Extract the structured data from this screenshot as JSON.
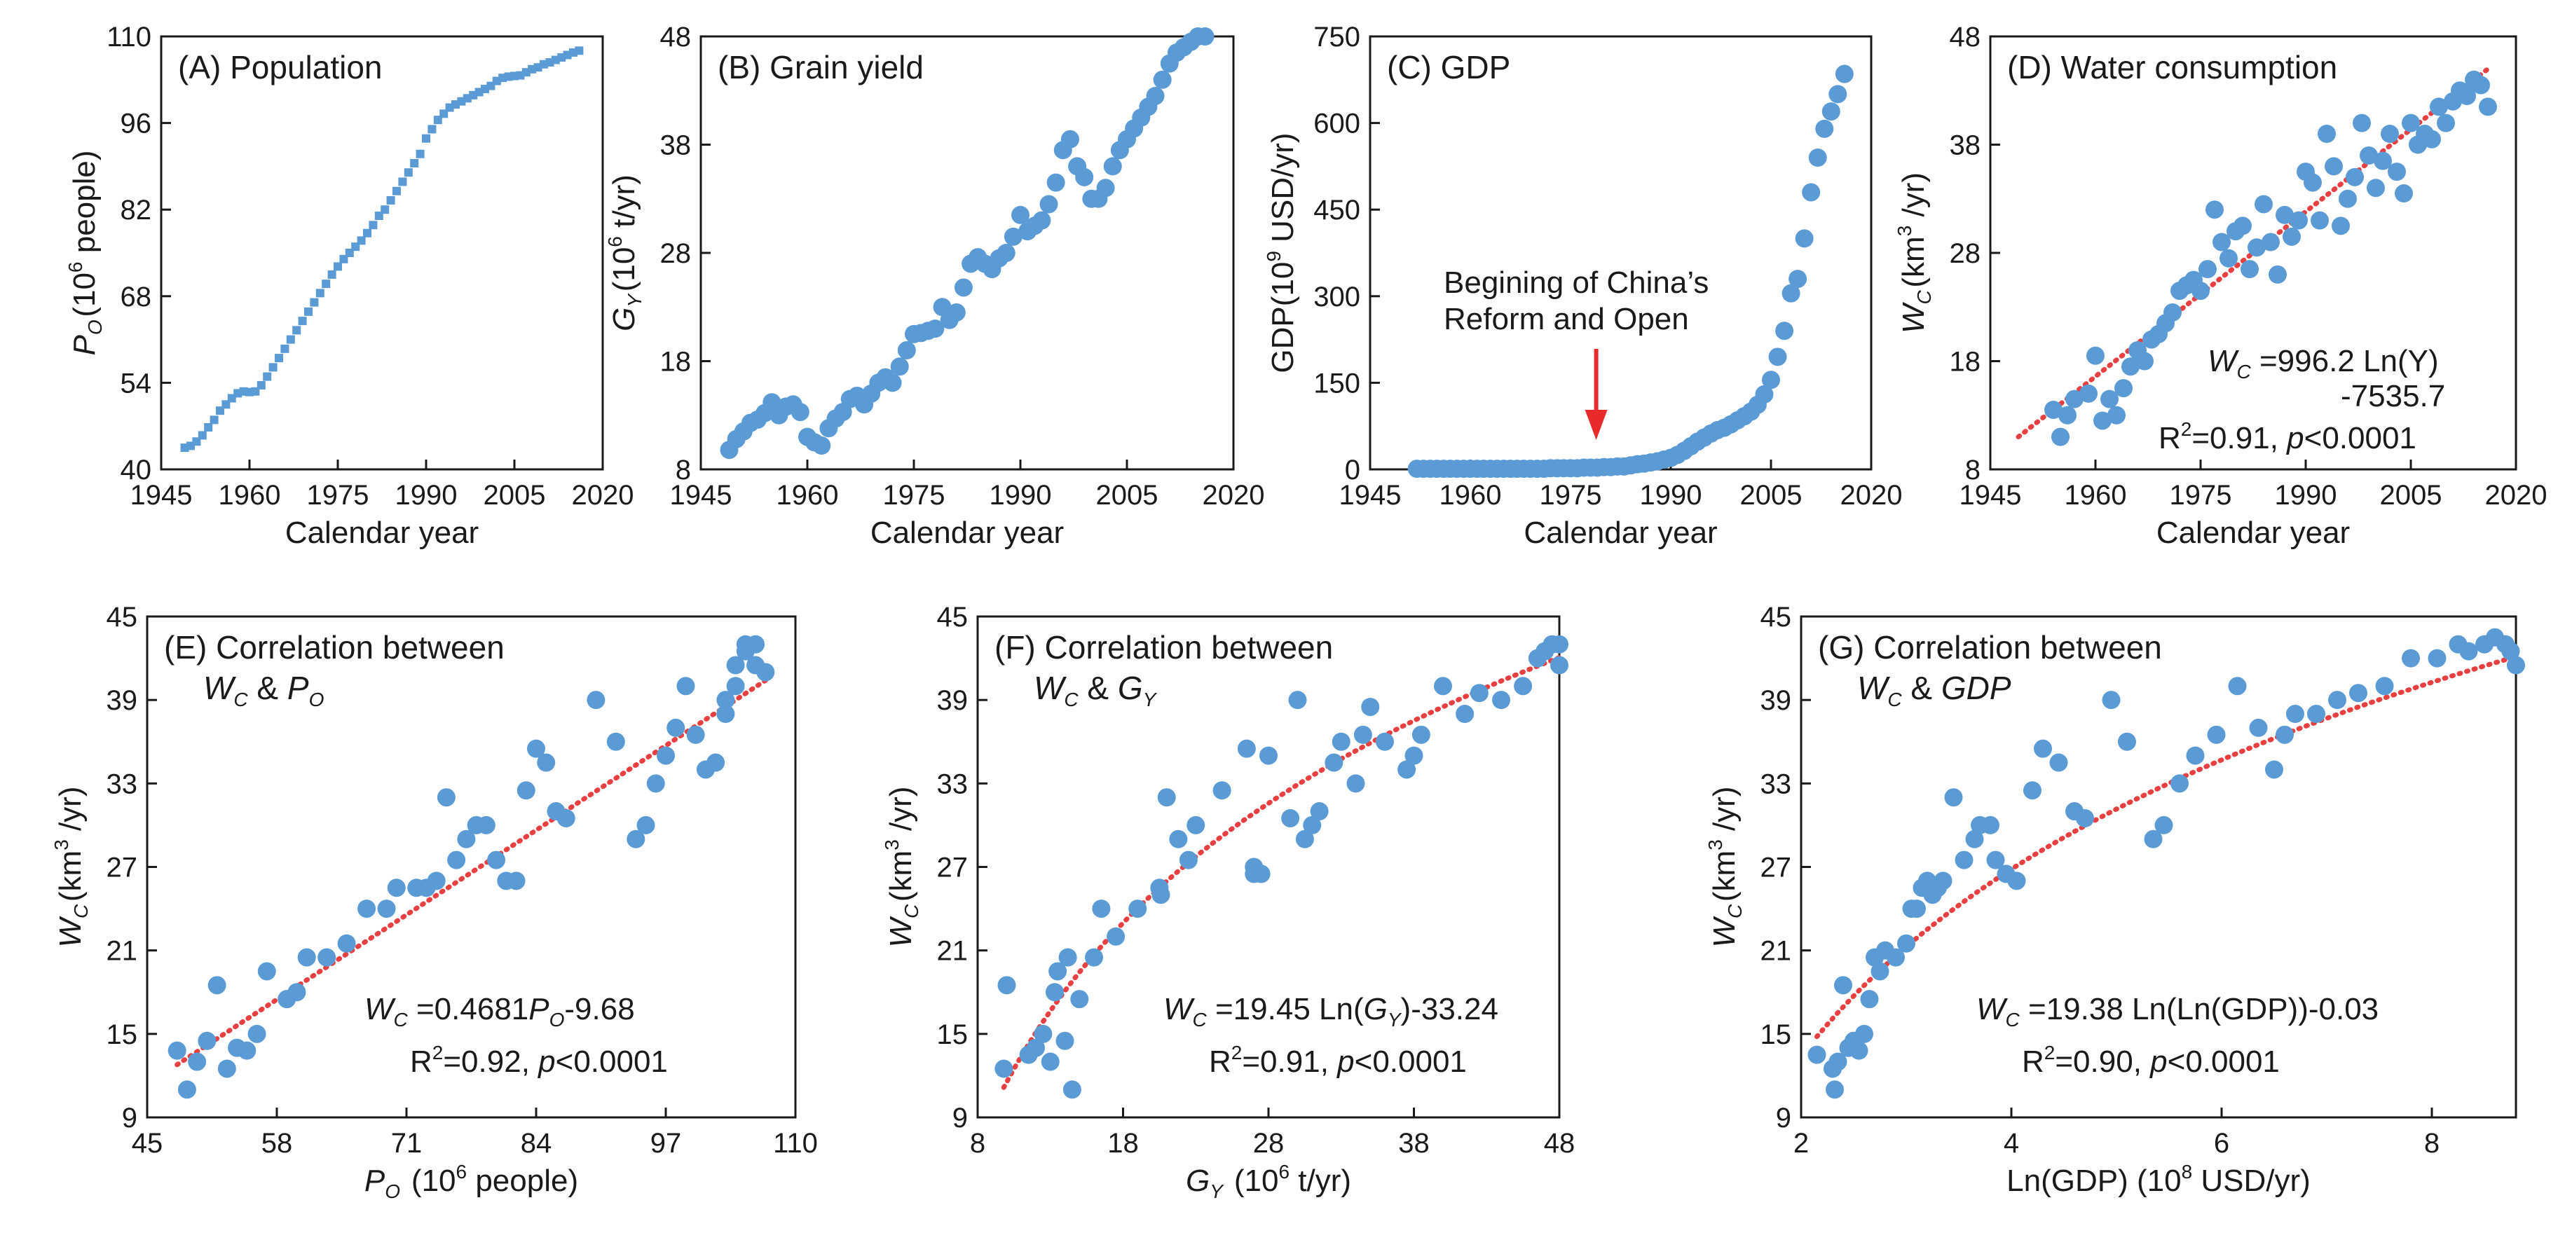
{
  "colors": {
    "point": "#5b9bd5",
    "fit": "#e84040",
    "arrow": "#e82a2a",
    "axis": "#1a1a1a"
  },
  "chart_data": [
    {
      "id": "A",
      "type": "scatter",
      "marker": "square",
      "title": "(A) Population",
      "xlabel": "Calendar year",
      "ylabel": {
        "main": "P",
        "sub": "O",
        "rest1": "(10",
        "sup": "6",
        "rest2": " people)"
      },
      "xlim": [
        1945,
        2020
      ],
      "ylim": [
        40,
        110
      ],
      "xticks": [
        "1945",
        "1960",
        "1975",
        "1990",
        "2005",
        "2020"
      ],
      "yticks": [
        "40",
        "54",
        "68",
        "82",
        "96",
        "110"
      ],
      "x": [
        1949,
        1950,
        1951,
        1952,
        1953,
        1954,
        1955,
        1956,
        1957,
        1958,
        1959,
        1960,
        1961,
        1962,
        1963,
        1964,
        1965,
        1966,
        1967,
        1968,
        1969,
        1970,
        1971,
        1972,
        1973,
        1974,
        1975,
        1976,
        1977,
        1978,
        1979,
        1980,
        1981,
        1982,
        1983,
        1984,
        1985,
        1986,
        1987,
        1988,
        1989,
        1990,
        1991,
        1992,
        1993,
        1994,
        1995,
        1996,
        1997,
        1998,
        1999,
        2000,
        2001,
        2002,
        2003,
        2004,
        2005,
        2006,
        2007,
        2008,
        2009,
        2010,
        2011,
        2012,
        2013,
        2014,
        2015,
        2016
      ],
      "y": [
        43.5,
        43.8,
        44.5,
        45.5,
        46.8,
        48.0,
        49.5,
        50.5,
        51.5,
        52.3,
        52.6,
        52.5,
        52.6,
        53.6,
        55.0,
        56.5,
        58.0,
        59.5,
        61.0,
        62.5,
        64.0,
        65.5,
        67.0,
        68.5,
        70.0,
        71.5,
        72.8,
        74.0,
        75.0,
        76.0,
        77.0,
        78.2,
        79.5,
        81.0,
        82.0,
        83.5,
        85.0,
        86.5,
        88.0,
        89.5,
        91.0,
        93.5,
        95.0,
        96.5,
        97.5,
        98.5,
        99.0,
        99.5,
        100.0,
        100.5,
        101.0,
        101.5,
        102.0,
        102.8,
        103.3,
        103.5,
        103.6,
        103.7,
        104.2,
        104.7,
        105.0,
        105.5,
        105.8,
        106.2,
        106.6,
        107.0,
        107.4,
        107.7
      ]
    },
    {
      "id": "B",
      "type": "scatter",
      "title": "(B) Grain yield",
      "xlabel": "Calendar year",
      "ylabel": {
        "main": "G",
        "sub": "Y",
        "rest1": "(10",
        "sup": "6",
        "rest2": " t/yr)"
      },
      "xlim": [
        1945,
        2020
      ],
      "ylim": [
        8,
        48
      ],
      "xticks": [
        "1945",
        "1960",
        "1975",
        "1990",
        "2005",
        "2020"
      ],
      "yticks": [
        "8",
        "18",
        "28",
        "38",
        "48"
      ],
      "x": [
        1949,
        1950,
        1951,
        1952,
        1953,
        1954,
        1955,
        1956,
        1957,
        1958,
        1959,
        1960,
        1961,
        1962,
        1963,
        1964,
        1965,
        1966,
        1967,
        1968,
        1969,
        1970,
        1971,
        1972,
        1973,
        1974,
        1975,
        1976,
        1977,
        1978,
        1979,
        1980,
        1981,
        1982,
        1983,
        1984,
        1985,
        1986,
        1987,
        1988,
        1989,
        1990,
        1991,
        1992,
        1993,
        1994,
        1995,
        1996,
        1997,
        1998,
        1999,
        2000,
        2001,
        2002,
        2003,
        2004,
        2005,
        2006,
        2007,
        2008,
        2009,
        2010,
        2011,
        2012,
        2013,
        2014,
        2015,
        2016
      ],
      "y": [
        9.8,
        10.8,
        11.5,
        12.3,
        12.6,
        13.2,
        14.2,
        13.0,
        13.8,
        14.0,
        13.3,
        11.0,
        10.5,
        10.2,
        11.8,
        12.7,
        13.3,
        14.5,
        14.8,
        14.0,
        15.0,
        16.0,
        16.5,
        16.0,
        17.5,
        19.0,
        20.5,
        20.6,
        20.8,
        21.0,
        23.0,
        21.8,
        22.5,
        24.8,
        27.0,
        27.6,
        27.0,
        26.5,
        27.5,
        28.0,
        29.5,
        31.5,
        30.0,
        30.5,
        31.0,
        32.5,
        34.5,
        37.5,
        38.5,
        36.0,
        35.0,
        33.0,
        33.0,
        34.0,
        36.0,
        37.5,
        38.5,
        39.5,
        40.5,
        41.5,
        42.5,
        44.0,
        45.5,
        46.5,
        47.0,
        47.5,
        48.0,
        48.0
      ]
    },
    {
      "id": "C",
      "type": "scatter",
      "title": "(C) GDP",
      "xlabel": "Calendar year",
      "ylabel": {
        "main": "GDP",
        "sub": "",
        "rest1": "(10",
        "sup": "9",
        "rest2": " USD/yr)"
      },
      "xlim": [
        1945,
        2020
      ],
      "ylim": [
        0,
        750
      ],
      "xticks": [
        "1945",
        "1960",
        "1975",
        "1990",
        "2005",
        "2020"
      ],
      "yticks": [
        "0",
        "150",
        "300",
        "450",
        "600",
        "750"
      ],
      "annotation": [
        "Begining of China’s",
        "Reform and Open"
      ],
      "arrow_year": 1978,
      "x": [
        1952,
        1953,
        1954,
        1955,
        1956,
        1957,
        1958,
        1959,
        1960,
        1961,
        1962,
        1963,
        1964,
        1965,
        1966,
        1967,
        1968,
        1969,
        1970,
        1971,
        1972,
        1973,
        1974,
        1975,
        1976,
        1977,
        1978,
        1979,
        1980,
        1981,
        1982,
        1983,
        1984,
        1985,
        1986,
        1987,
        1988,
        1989,
        1990,
        1991,
        1992,
        1993,
        1994,
        1995,
        1996,
        1997,
        1998,
        1999,
        2000,
        2001,
        2002,
        2003,
        2004,
        2005,
        2006,
        2007,
        2008,
        2009,
        2010,
        2011,
        2012,
        2013,
        2014,
        2015,
        2016
      ],
      "y": [
        1,
        1,
        1,
        1,
        1,
        1,
        1,
        1,
        1,
        1,
        1,
        1,
        1,
        1,
        1,
        1,
        1,
        1,
        1,
        1,
        2,
        2,
        2,
        2,
        2,
        3,
        3,
        3,
        4,
        4,
        5,
        5,
        7,
        9,
        10,
        12,
        14,
        17,
        20,
        25,
        32,
        40,
        48,
        55,
        62,
        68,
        72,
        78,
        85,
        92,
        100,
        112,
        130,
        155,
        195,
        240,
        305,
        330,
        400,
        480,
        540,
        590,
        620,
        650,
        685
      ]
    },
    {
      "id": "D",
      "type": "scatter",
      "title": "(D) Water consumption",
      "xlabel": "Calendar year",
      "ylabel": {
        "main": "W",
        "sub": "C",
        "rest1": "(km",
        "sup": "3",
        "rest2": " /yr)"
      },
      "xlim": [
        1945,
        2020
      ],
      "ylim": [
        8,
        48
      ],
      "xticks": [
        "1945",
        "1960",
        "1975",
        "1990",
        "2005",
        "2020"
      ],
      "yticks": [
        "8",
        "18",
        "28",
        "38",
        "48"
      ],
      "fit": {
        "type": "linear",
        "x0": 1949,
        "y0": 11.0,
        "x1": 2016,
        "y1": 45.0
      },
      "equation": {
        "lhs": "W",
        "sub": "C",
        "line1": " =996.2 Ln(Y)",
        "line2": "-7535.7",
        "r2a": "R",
        "r2sup": "2",
        "r2b": "=0.91, ",
        "p": "p",
        "ptail": "<0.0001"
      },
      "x": [
        1954,
        1955,
        1956,
        1957,
        1959,
        1960,
        1961,
        1962,
        1963,
        1964,
        1965,
        1966,
        1967,
        1968,
        1969,
        1970,
        1971,
        1972,
        1973,
        1974,
        1975,
        1976,
        1977,
        1978,
        1979,
        1980,
        1981,
        1982,
        1983,
        1984,
        1985,
        1986,
        1987,
        1988,
        1989,
        1990,
        1991,
        1992,
        1993,
        1994,
        1995,
        1996,
        1997,
        1998,
        1999,
        2000,
        2001,
        2002,
        2003,
        2004,
        2005,
        2006,
        2007,
        2008,
        2009,
        2010,
        2011,
        2012,
        2013,
        2014,
        2015,
        2016
      ],
      "y": [
        13.5,
        11.0,
        13.0,
        14.5,
        15.0,
        18.5,
        12.5,
        14.5,
        13.0,
        15.5,
        17.5,
        19.0,
        18.0,
        20.0,
        20.5,
        21.5,
        22.5,
        24.5,
        25.0,
        25.5,
        24.5,
        26.5,
        32.0,
        29.0,
        27.5,
        30.0,
        30.5,
        26.5,
        28.5,
        32.5,
        29.0,
        26.0,
        31.5,
        29.5,
        31.0,
        35.5,
        34.5,
        31.0,
        39.0,
        36.0,
        30.5,
        33.0,
        35.0,
        40.0,
        37.0,
        34.0,
        36.5,
        39.0,
        35.5,
        33.5,
        40.0,
        38.0,
        39.0,
        38.5,
        41.5,
        40.0,
        42.0,
        43.0,
        42.5,
        44.0,
        43.5,
        41.5
      ]
    },
    {
      "id": "E",
      "type": "scatter",
      "title": "(E) Correlation between",
      "subtitle": {
        "a": "W",
        "asub": "C",
        "mid": " & ",
        "b": "P",
        "bsub": "O"
      },
      "xlabel": {
        "main": "P",
        "sub": "O",
        "rest1": " (10",
        "sup": "6",
        "rest2": " people)"
      },
      "ylabel": {
        "main": "W",
        "sub": "C",
        "rest1": "(km",
        "sup": "3",
        "rest2": " /yr)"
      },
      "xlim": [
        45,
        110
      ],
      "ylim": [
        9,
        45
      ],
      "xticks": [
        "45",
        "58",
        "71",
        "84",
        "97",
        "110"
      ],
      "yticks": [
        "9",
        "15",
        "21",
        "27",
        "33",
        "39",
        "45"
      ],
      "fit": {
        "type": "linear",
        "slope": 0.4681,
        "intercept": -9.68,
        "x0": 48,
        "x1": 107
      },
      "equation": {
        "lhs": "W",
        "sub": "C",
        "a": " =0.4681",
        "var": "P",
        "varsub": "O",
        "b": "-9.68",
        "r2a": "R",
        "r2sup": "2",
        "r2b": "=0.92, ",
        "p": "p",
        "ptail": "<0.0001"
      },
      "x": [
        48,
        49,
        50,
        51,
        52,
        53,
        54,
        55,
        56,
        57,
        59,
        60,
        61,
        63,
        65,
        67,
        69,
        70,
        72,
        73,
        74,
        75,
        76,
        77,
        78,
        79,
        80,
        81,
        82,
        83,
        84,
        85,
        86,
        87,
        90,
        92,
        94,
        95,
        96,
        97,
        98,
        99,
        100,
        101,
        102,
        103,
        103,
        104,
        104,
        105,
        105,
        106,
        106,
        107
      ],
      "y": [
        13.8,
        11.0,
        13.0,
        14.5,
        18.5,
        12.5,
        14.0,
        13.8,
        15.0,
        19.5,
        17.5,
        18.0,
        20.5,
        20.5,
        21.5,
        24.0,
        24.0,
        25.5,
        25.5,
        25.5,
        26.0,
        32.0,
        27.5,
        29.0,
        30.0,
        30.0,
        27.5,
        26.0,
        26.0,
        32.5,
        35.5,
        34.5,
        31.0,
        30.5,
        39.0,
        36.0,
        29.0,
        30.0,
        33.0,
        35.0,
        37.0,
        40.0,
        36.5,
        34.0,
        34.5,
        38.0,
        39.0,
        40.0,
        41.5,
        42.5,
        43.0,
        43.0,
        41.5,
        41.0
      ]
    },
    {
      "id": "F",
      "type": "scatter",
      "title": "(F) Correlation between",
      "subtitle": {
        "a": "W",
        "asub": "C",
        "mid": " & ",
        "b": "G",
        "bsub": "Y"
      },
      "xlabel": {
        "main": "G",
        "sub": "Y",
        "rest1": " (10",
        "sup": "6",
        "rest2": " t/yr)"
      },
      "ylabel": {
        "main": "W",
        "sub": "C",
        "rest1": "(km",
        "sup": "3",
        "rest2": " /yr)"
      },
      "xlim": [
        8,
        48
      ],
      "ylim": [
        9,
        45
      ],
      "xticks": [
        "8",
        "18",
        "28",
        "38",
        "48"
      ],
      "yticks": [
        "9",
        "15",
        "21",
        "27",
        "33",
        "39",
        "45"
      ],
      "fit": {
        "type": "log",
        "a": 19.45,
        "b": -33.24,
        "x0": 9.8,
        "x1": 48
      },
      "equation": {
        "lhs": "W",
        "sub": "C",
        "a": " =19.45 Ln(",
        "var": "G",
        "varsub": "Y",
        "b": ")-33.24",
        "r2a": "R",
        "r2sup": "2",
        "r2b": "=0.91, ",
        "p": "p",
        "ptail": "<0.0001"
      },
      "x": [
        9.8,
        10.0,
        11.5,
        12.0,
        12.5,
        13.0,
        13.3,
        13.5,
        14.0,
        14.2,
        14.5,
        15.0,
        16.0,
        16.5,
        17.5,
        19.0,
        20.5,
        20.6,
        21.0,
        21.8,
        22.5,
        23.0,
        24.8,
        26.5,
        27.0,
        27.0,
        27.5,
        28.0,
        29.5,
        30.0,
        30.5,
        31.0,
        31.5,
        32.5,
        33.0,
        34.0,
        34.5,
        35.0,
        36.0,
        37.5,
        38.0,
        38.5,
        40.0,
        41.5,
        42.5,
        44.0,
        45.5,
        46.5,
        47.0,
        47.5,
        48.0,
        48.0
      ],
      "y": [
        12.5,
        18.5,
        13.5,
        14.0,
        15.0,
        13.0,
        18.0,
        19.5,
        14.5,
        20.5,
        11.0,
        17.5,
        20.5,
        24.0,
        22.0,
        24.0,
        25.5,
        25.0,
        32.0,
        29.0,
        27.5,
        30.0,
        32.5,
        35.5,
        26.5,
        27.0,
        26.5,
        35.0,
        30.5,
        39.0,
        29.0,
        30.0,
        31.0,
        34.5,
        36.0,
        33.0,
        36.5,
        38.5,
        36.0,
        34.0,
        35.0,
        36.5,
        40.0,
        38.0,
        39.5,
        39.0,
        40.0,
        42.0,
        42.5,
        43.0,
        43.0,
        41.5
      ]
    },
    {
      "id": "G",
      "type": "scatter",
      "title": "(G) Correlation between",
      "subtitle": {
        "a": "W",
        "asub": "C",
        "mid": " & ",
        "b": "GDP",
        "bsub": ""
      },
      "xlabel": {
        "main": "Ln(GDP) (10",
        "sub": "",
        "rest1": "",
        "sup": "8",
        "rest2": " USD/yr)"
      },
      "ylabel": {
        "main": "W",
        "sub": "C",
        "rest1": "(km",
        "sup": "3",
        "rest2": " /yr)"
      },
      "xlim": [
        2,
        8.8
      ],
      "ylim": [
        9,
        45
      ],
      "xticks": [
        "2",
        "4",
        "6",
        "8"
      ],
      "xtick_values": [
        2,
        4,
        6,
        8
      ],
      "yticks": [
        "9",
        "15",
        "21",
        "27",
        "33",
        "39",
        "45"
      ],
      "fit": {
        "type": "loglog",
        "a": 19.38,
        "b": -0.03,
        "x0": 2.15,
        "x1": 8.8
      },
      "equation": {
        "lhs": "W",
        "sub": "C",
        "a": " =19.38 Ln(Ln(GDP))-0.03",
        "var": "",
        "varsub": "",
        "b": "",
        "r2a": "R",
        "r2sup": "2",
        "r2b": "=0.90, ",
        "p": "p",
        "ptail": "<0.0001"
      },
      "x": [
        2.15,
        2.3,
        2.32,
        2.35,
        2.4,
        2.45,
        2.5,
        2.55,
        2.6,
        2.65,
        2.7,
        2.75,
        2.8,
        2.9,
        3.0,
        3.05,
        3.1,
        3.15,
        3.2,
        3.25,
        3.3,
        3.35,
        3.45,
        3.55,
        3.65,
        3.7,
        3.8,
        3.85,
        3.95,
        4.05,
        4.2,
        4.3,
        4.45,
        4.6,
        4.7,
        4.95,
        5.1,
        5.35,
        5.45,
        5.6,
        5.75,
        5.95,
        6.15,
        6.35,
        6.5,
        6.6,
        6.7,
        6.9,
        7.1,
        7.3,
        7.55,
        7.8,
        8.05,
        8.25,
        8.35,
        8.5,
        8.6,
        8.7,
        8.75,
        8.8
      ],
      "y": [
        13.5,
        12.5,
        11.0,
        13.0,
        18.5,
        14.0,
        14.5,
        13.8,
        15.0,
        17.5,
        20.5,
        19.5,
        21.0,
        20.5,
        21.5,
        24.0,
        24.0,
        25.5,
        26.0,
        25.0,
        25.5,
        26.0,
        32.0,
        27.5,
        29.0,
        30.0,
        30.0,
        27.5,
        26.5,
        26.0,
        32.5,
        35.5,
        34.5,
        31.0,
        30.5,
        39.0,
        36.0,
        29.0,
        30.0,
        33.0,
        35.0,
        36.5,
        40.0,
        37.0,
        34.0,
        36.5,
        38.0,
        38.0,
        39.0,
        39.5,
        40.0,
        42.0,
        42.0,
        43.0,
        42.5,
        43.0,
        43.5,
        43.0,
        42.5,
        41.5
      ]
    }
  ]
}
